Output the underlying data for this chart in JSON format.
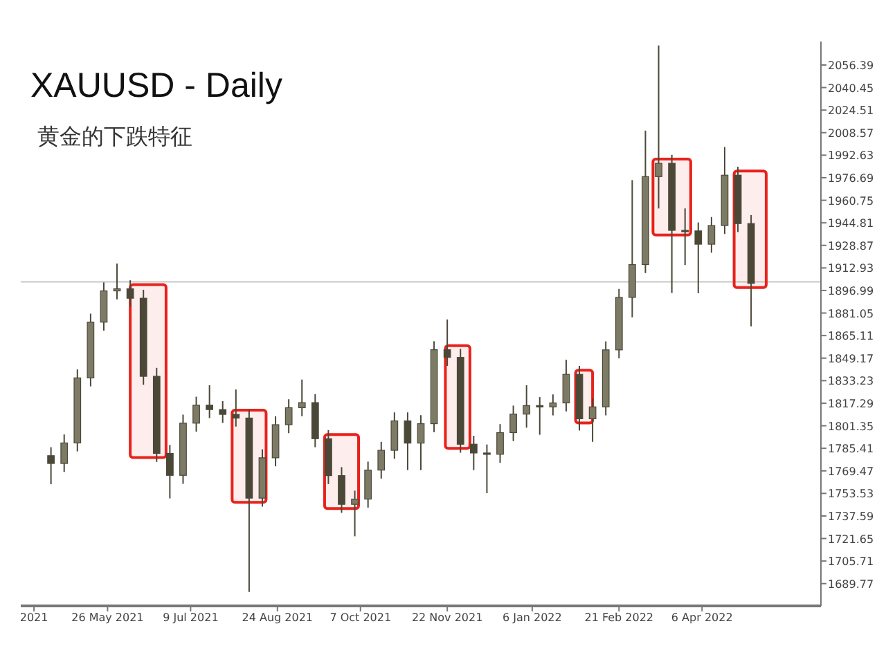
{
  "chart_data": {
    "type": "candlestick",
    "title": "XAUUSD - Daily",
    "subtitle": "黄金的下跌特征",
    "x": [
      "2021-04-26",
      "2021-05-03",
      "2021-05-10",
      "2021-05-17",
      "2021-05-24",
      "2021-05-31",
      "2021-06-07",
      "2021-06-14",
      "2021-06-21",
      "2021-06-28",
      "2021-07-05",
      "2021-07-12",
      "2021-07-19",
      "2021-07-26",
      "2021-08-02",
      "2021-08-09",
      "2021-08-16",
      "2021-08-23",
      "2021-08-30",
      "2021-09-06",
      "2021-09-13",
      "2021-09-20",
      "2021-09-27",
      "2021-10-04",
      "2021-10-11",
      "2021-10-18",
      "2021-10-25",
      "2021-11-01",
      "2021-11-08",
      "2021-11-15",
      "2021-11-22",
      "2021-11-29",
      "2021-12-06",
      "2021-12-13",
      "2021-12-20",
      "2021-12-27",
      "2022-01-03",
      "2022-01-10",
      "2022-01-17",
      "2022-01-24",
      "2022-01-31",
      "2022-02-07",
      "2022-02-14",
      "2022-02-21",
      "2022-02-28",
      "2022-03-07",
      "2022-03-14",
      "2022-03-21",
      "2022-03-28",
      "2022-04-04",
      "2022-04-11",
      "2022-04-18",
      "2022-04-25",
      "2022-05-02"
    ],
    "ohlc": [
      [
        1780.2,
        1786.2,
        1760.0,
        1774.7
      ],
      [
        1774.7,
        1795.2,
        1768.7,
        1789.2
      ],
      [
        1789.2,
        1841.2,
        1783.2,
        1835.2
      ],
      [
        1835.2,
        1880.6,
        1829.2,
        1874.6
      ],
      [
        1874.6,
        1902.7,
        1868.6,
        1896.7
      ],
      [
        1896.7,
        1916.0,
        1890.7,
        1898.2
      ],
      [
        1898.2,
        1904.2,
        1885.5,
        1891.5
      ],
      [
        1891.5,
        1897.5,
        1830.3,
        1836.3
      ],
      [
        1836.3,
        1842.3,
        1775.8,
        1781.8
      ],
      [
        1781.8,
        1787.8,
        1750.0,
        1766.3
      ],
      [
        1766.3,
        1809.2,
        1760.3,
        1803.2
      ],
      [
        1803.2,
        1821.9,
        1797.2,
        1815.9
      ],
      [
        1815.9,
        1830.0,
        1806.8,
        1812.8
      ],
      [
        1812.8,
        1818.8,
        1803.4,
        1809.4
      ],
      [
        1809.4,
        1827.0,
        1800.8,
        1806.8
      ],
      [
        1806.8,
        1812.8,
        1683.9,
        1750.2
      ],
      [
        1750.2,
        1784.7,
        1744.2,
        1778.7
      ],
      [
        1778.7,
        1808.1,
        1772.7,
        1802.1
      ],
      [
        1802.1,
        1820.1,
        1796.1,
        1814.1
      ],
      [
        1814.1,
        1834.0,
        1808.1,
        1817.7
      ],
      [
        1817.7,
        1823.7,
        1786.2,
        1792.2
      ],
      [
        1792.2,
        1798.2,
        1760.1,
        1766.1
      ],
      [
        1766.1,
        1772.1,
        1739.8,
        1745.8
      ],
      [
        1745.8,
        1755.5,
        1723.2,
        1749.5
      ],
      [
        1749.5,
        1776.0,
        1743.5,
        1770.0
      ],
      [
        1770.0,
        1790.0,
        1764.0,
        1784.0
      ],
      [
        1784.0,
        1810.8,
        1778.0,
        1804.8
      ],
      [
        1804.8,
        1810.8,
        1770.0,
        1789.1
      ],
      [
        1789.1,
        1808.8,
        1770.0,
        1802.8
      ],
      [
        1802.8,
        1861.1,
        1796.8,
        1855.1
      ],
      [
        1855.1,
        1876.5,
        1843.7,
        1849.7
      ],
      [
        1849.7,
        1855.7,
        1782.3,
        1788.3
      ],
      [
        1788.3,
        1794.3,
        1770.0,
        1782.1
      ],
      [
        1782.1,
        1788.1,
        1753.7,
        1781.2
      ],
      [
        1781.2,
        1802.5,
        1775.2,
        1796.5
      ],
      [
        1796.5,
        1815.6,
        1790.5,
        1809.6
      ],
      [
        1809.6,
        1830.0,
        1800.0,
        1815.6
      ],
      [
        1815.6,
        1821.6,
        1795.0,
        1814.7
      ],
      [
        1814.7,
        1823.5,
        1808.7,
        1817.5
      ],
      [
        1817.5,
        1848.0,
        1811.5,
        1837.7
      ],
      [
        1837.7,
        1843.7,
        1798.0,
        1806.3
      ],
      [
        1806.3,
        1820.7,
        1790.0,
        1814.7
      ],
      [
        1814.7,
        1861.0,
        1808.7,
        1855.0
      ],
      [
        1855.0,
        1898.1,
        1849.0,
        1892.1
      ],
      [
        1892.1,
        1975.0,
        1878.0,
        1915.3
      ],
      [
        1915.3,
        2010.0,
        1909.3,
        1977.5
      ],
      [
        1977.5,
        2070.2,
        1955.0,
        1986.9
      ],
      [
        1986.9,
        1992.9,
        1895.2,
        1939.5
      ],
      [
        1939.5,
        1955.0,
        1915.0,
        1939.1
      ],
      [
        1939.1,
        1945.1,
        1895.0,
        1929.7
      ],
      [
        1929.7,
        1948.9,
        1923.7,
        1942.9
      ],
      [
        1942.9,
        1998.4,
        1936.9,
        1978.5
      ],
      [
        1978.5,
        1984.5,
        1938.3,
        1944.3
      ],
      [
        1944.3,
        1950.3,
        1871.6,
        1902.0
      ]
    ],
    "xlim": [
      "2021-04-10",
      "2022-06-08"
    ],
    "xticks": [
      {
        "value": "2021-04-17",
        "label": "2021"
      },
      {
        "value": "2021-05-26",
        "label": "26 May 2021"
      },
      {
        "value": "2021-07-09",
        "label": "9 Jul 2021"
      },
      {
        "value": "2021-08-24",
        "label": "24 Aug 2021"
      },
      {
        "value": "2021-10-07",
        "label": "7 Oct 2021"
      },
      {
        "value": "2021-11-22",
        "label": "22 Nov 2021"
      },
      {
        "value": "2022-01-06",
        "label": "6 Jan 2022"
      },
      {
        "value": "2022-02-21",
        "label": "21 Feb 2022"
      },
      {
        "value": "2022-04-06",
        "label": "6 Apr 2022"
      }
    ],
    "ylim": [
      1674.0,
      2073.0
    ],
    "yticks": [
      1689.77,
      1705.71,
      1721.65,
      1737.59,
      1753.53,
      1769.47,
      1785.41,
      1801.35,
      1817.29,
      1833.23,
      1849.17,
      1865.11,
      1881.05,
      1896.99,
      1912.93,
      1928.87,
      1944.81,
      1960.75,
      1976.69,
      1992.63,
      2008.57,
      2024.51,
      2040.45,
      2056.39
    ],
    "ref_lines": [
      {
        "axis": "y",
        "value": 1903.1,
        "color": "#c8c8c8"
      }
    ],
    "bands": [
      {
        "axis": "x",
        "from": "2021-06-07",
        "to": "2021-06-26",
        "color": "#e8221b"
      },
      {
        "axis": "x",
        "from": "2021-07-31",
        "to": "2021-08-18",
        "color": "#e8221b"
      },
      {
        "axis": "x",
        "from": "2021-09-18",
        "to": "2021-10-06",
        "color": "#e8221b"
      },
      {
        "axis": "x",
        "from": "2021-11-21",
        "to": "2021-12-04",
        "color": "#e8221b"
      },
      {
        "axis": "x",
        "from": "2022-01-29",
        "to": "2022-02-07",
        "color": "#e8221b"
      },
      {
        "axis": "x",
        "from": "2022-03-11",
        "to": "2022-03-31",
        "color": "#e8221b"
      },
      {
        "axis": "x",
        "from": "2022-04-23",
        "to": "2022-05-10",
        "color": "#e8221b"
      }
    ]
  }
}
